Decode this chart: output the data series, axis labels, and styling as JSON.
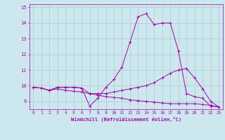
{
  "xlabel": "Windchill (Refroidissement éolien,°C)",
  "background_color": "#cce8ee",
  "line_color": "#aa00aa",
  "grid_color": "#aacccc",
  "xlim": [
    -0.5,
    23.5
  ],
  "ylim": [
    8.5,
    15.2
  ],
  "yticks": [
    9,
    10,
    11,
    12,
    13,
    14,
    15
  ],
  "ytick_labels": [
    "9",
    "10",
    "11",
    "12",
    "13",
    "14",
    "15"
  ],
  "xticks": [
    0,
    1,
    2,
    3,
    4,
    5,
    6,
    7,
    8,
    9,
    10,
    11,
    12,
    13,
    14,
    15,
    16,
    17,
    18,
    19,
    20,
    21,
    22,
    23
  ],
  "series": {
    "line1": [
      9.9,
      9.85,
      9.7,
      9.9,
      9.9,
      9.9,
      9.85,
      8.7,
      9.2,
      9.9,
      10.4,
      11.2,
      12.8,
      14.4,
      14.6,
      13.9,
      14.0,
      14.0,
      12.2,
      9.5,
      9.3,
      9.2,
      8.7,
      8.65
    ],
    "line2": [
      9.9,
      9.85,
      9.7,
      9.9,
      9.9,
      9.9,
      9.85,
      9.5,
      9.5,
      9.5,
      9.6,
      9.7,
      9.8,
      9.9,
      10.0,
      10.2,
      10.5,
      10.8,
      11.0,
      11.1,
      10.5,
      9.8,
      9.0,
      8.65
    ],
    "line3": [
      9.9,
      9.85,
      9.7,
      9.8,
      9.7,
      9.65,
      9.6,
      9.5,
      9.4,
      9.3,
      9.25,
      9.2,
      9.1,
      9.05,
      9.0,
      8.95,
      8.9,
      8.85,
      8.85,
      8.85,
      8.85,
      8.8,
      8.75,
      8.65
    ]
  }
}
